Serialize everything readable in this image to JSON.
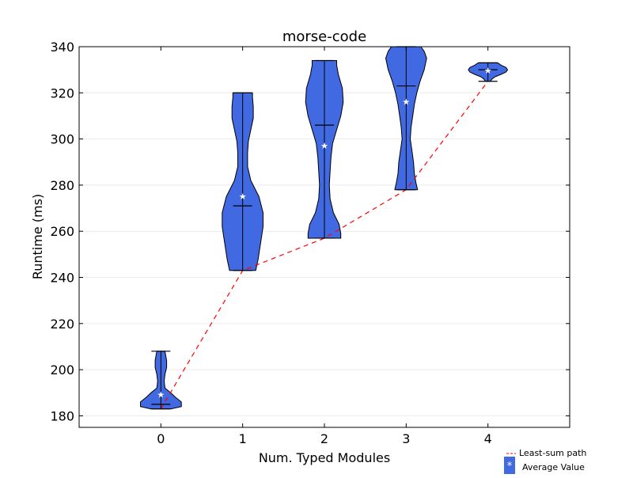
{
  "chart_data": {
    "type": "violin",
    "title": "morse-code",
    "xlabel": "Num. Typed Modules",
    "ylabel": "Runtime (ms)",
    "xlim": [
      -1,
      5
    ],
    "ylim": [
      175,
      340
    ],
    "x_ticks": [
      0,
      1,
      2,
      3,
      4
    ],
    "y_ticks": [
      180,
      200,
      220,
      240,
      260,
      280,
      300,
      320,
      340
    ],
    "grid": "horizontal",
    "legend_position": "bottom-right",
    "colors": {
      "violin_fill": "#4169E1",
      "least_sum_path": "#ff0000",
      "average_marker": "#ffffff"
    },
    "violins": [
      {
        "x": 0,
        "min": 183,
        "max": 208,
        "median": 185,
        "mean": 189.5,
        "density": [
          [
            183,
            0.12
          ],
          [
            184,
            0.25
          ],
          [
            186,
            0.25
          ],
          [
            188,
            0.18
          ],
          [
            190,
            0.12
          ],
          [
            192,
            0.05
          ],
          [
            195,
            0.04
          ],
          [
            198,
            0.05
          ],
          [
            201,
            0.07
          ],
          [
            204,
            0.07
          ],
          [
            206,
            0.06
          ],
          [
            208,
            0.05
          ]
        ]
      },
      {
        "x": 1,
        "min": 243,
        "max": 320,
        "median": 271,
        "mean": 275.5,
        "density": [
          [
            243,
            0.16
          ],
          [
            248,
            0.19
          ],
          [
            255,
            0.22
          ],
          [
            262,
            0.25
          ],
          [
            268,
            0.25
          ],
          [
            275,
            0.2
          ],
          [
            282,
            0.1
          ],
          [
            288,
            0.06
          ],
          [
            294,
            0.06
          ],
          [
            299,
            0.07
          ],
          [
            304,
            0.1
          ],
          [
            309,
            0.13
          ],
          [
            314,
            0.13
          ],
          [
            318,
            0.12
          ],
          [
            320,
            0.12
          ]
        ]
      },
      {
        "x": 2,
        "min": 257,
        "max": 334,
        "median": 306,
        "mean": 297.5,
        "density": [
          [
            257,
            0.2
          ],
          [
            259,
            0.2
          ],
          [
            263,
            0.18
          ],
          [
            268,
            0.11
          ],
          [
            274,
            0.07
          ],
          [
            280,
            0.06
          ],
          [
            286,
            0.07
          ],
          [
            292,
            0.08
          ],
          [
            298,
            0.1
          ],
          [
            304,
            0.15
          ],
          [
            310,
            0.2
          ],
          [
            316,
            0.23
          ],
          [
            322,
            0.22
          ],
          [
            328,
            0.17
          ],
          [
            332,
            0.15
          ],
          [
            334,
            0.15
          ]
        ]
      },
      {
        "x": 3,
        "min": 278,
        "max": 340,
        "median": 323,
        "mean": 316.5,
        "density": [
          [
            278,
            0.14
          ],
          [
            281,
            0.12
          ],
          [
            285,
            0.1
          ],
          [
            290,
            0.09
          ],
          [
            295,
            0.07
          ],
          [
            300,
            0.05
          ],
          [
            305,
            0.06
          ],
          [
            310,
            0.08
          ],
          [
            315,
            0.1
          ],
          [
            320,
            0.13
          ],
          [
            325,
            0.17
          ],
          [
            330,
            0.22
          ],
          [
            335,
            0.25
          ],
          [
            338,
            0.22
          ],
          [
            340,
            0.18
          ]
        ]
      },
      {
        "x": 4,
        "min": 325,
        "max": 333,
        "median": 330,
        "mean": 330,
        "density": [
          [
            325,
            0.03
          ],
          [
            326,
            0.05
          ],
          [
            327,
            0.09
          ],
          [
            328,
            0.16
          ],
          [
            329,
            0.22
          ],
          [
            330,
            0.24
          ],
          [
            331,
            0.22
          ],
          [
            332,
            0.16
          ],
          [
            333,
            0.12
          ]
        ]
      }
    ],
    "least_sum_path": {
      "x": [
        0,
        1,
        2,
        3,
        4
      ],
      "y": [
        183,
        243,
        257,
        278,
        325
      ]
    },
    "legend": [
      {
        "label": "Least-sum path",
        "kind": "line"
      },
      {
        "label": "Average Value",
        "kind": "swatch",
        "symbol": "*"
      }
    ]
  }
}
